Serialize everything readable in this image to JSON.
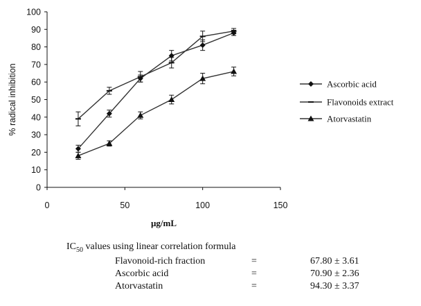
{
  "chart_data": {
    "type": "line",
    "xlabel": "µg/mL",
    "ylabel": "% radical inhibition",
    "xlim": [
      0,
      150
    ],
    "ylim": [
      0,
      100
    ],
    "x_ticks": [
      0,
      50,
      100,
      150
    ],
    "y_ticks": [
      0,
      10,
      20,
      30,
      40,
      50,
      60,
      70,
      80,
      90,
      100
    ],
    "grid": false,
    "legend_position": "right",
    "x": [
      20,
      40,
      60,
      80,
      100,
      120
    ],
    "series": [
      {
        "name": "Ascorbic acid",
        "marker": "diamond",
        "values": [
          22,
          42,
          62,
          75,
          81,
          88
        ],
        "errors": [
          2,
          2,
          2,
          3,
          3,
          1.5
        ]
      },
      {
        "name": "Flavonoids extract",
        "marker": "dash",
        "values": [
          39,
          55,
          63,
          71,
          86,
          89
        ],
        "errors": [
          4,
          2,
          3,
          3,
          3,
          1.5
        ]
      },
      {
        "name": "Atorvastatin",
        "marker": "triangle",
        "values": [
          18,
          25,
          41,
          50,
          62,
          66
        ],
        "errors": [
          2,
          1.5,
          2,
          2.5,
          3,
          2.5
        ]
      }
    ]
  },
  "ic50": {
    "title": "IC50 values using linear correlation formula",
    "title_main": "IC",
    "title_sub": "50",
    "title_rest": " values using linear correlation formula",
    "rows": [
      {
        "label": "Flavonoid-rich fraction",
        "eq": "=",
        "value": "67.80 ± 3.61"
      },
      {
        "label": "Ascorbic acid",
        "eq": "=",
        "value": "70.90 ± 2.36"
      },
      {
        "label": "Atorvastatin",
        "eq": "=",
        "value": "94.30 ± 3.37"
      }
    ]
  }
}
